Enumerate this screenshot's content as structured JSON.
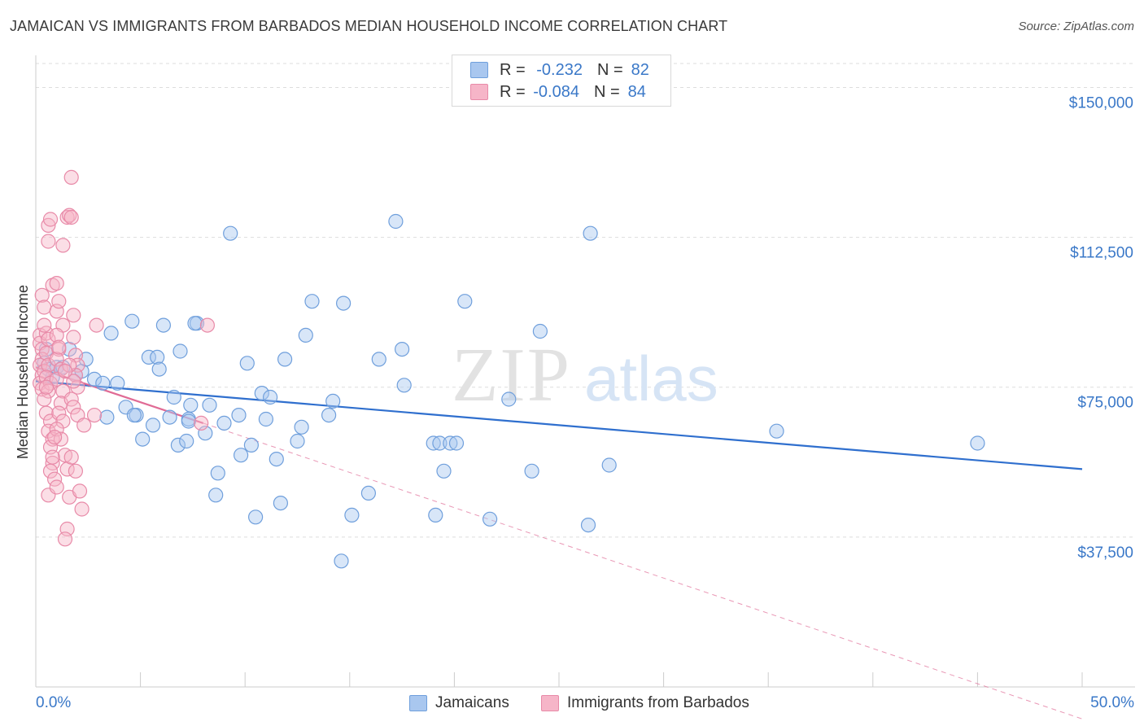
{
  "header": {
    "title": "JAMAICAN VS IMMIGRANTS FROM BARBADOS MEDIAN HOUSEHOLD INCOME CORRELATION CHART",
    "source": "Source: ZipAtlas.com"
  },
  "legend": {
    "rows": [
      {
        "r_label": "R =",
        "r_value": "-0.232",
        "n_label": "N =",
        "n_value": "82",
        "color": "#a9c7ef"
      },
      {
        "r_label": "R =",
        "r_value": "-0.084",
        "n_label": "N =",
        "n_value": "84",
        "color": "#f6b5c8"
      }
    ]
  },
  "bottom_legend": {
    "series1": "Jamaicans",
    "series2": "Immigrants from Barbados"
  },
  "watermark": {
    "zip": "ZIP",
    "atlas": "atlas"
  },
  "colors": {
    "blue_fill": "#a9c7ef",
    "blue_stroke": "#6f9fdc",
    "blue_line": "#2f6fce",
    "pink_fill": "#f6b5c8",
    "pink_stroke": "#e88aa8",
    "pink_line": "#e06b95",
    "axis_text": "#3a78c8",
    "grid": "#dddddd"
  },
  "chart_data": {
    "type": "scatter",
    "title": "JAMAICAN VS IMMIGRANTS FROM BARBADOS MEDIAN HOUSEHOLD INCOME CORRELATION CHART",
    "xlabel": "",
    "ylabel": "Median Household Income",
    "xlim": [
      0,
      50
    ],
    "ylim": [
      0,
      156000
    ],
    "x_tick_labels": [
      "0.0%",
      "50.0%"
    ],
    "y_ticks": [
      37500,
      75000,
      112500,
      150000
    ],
    "y_tick_labels": [
      "$37,500",
      "$75,000",
      "$112,500",
      "$150,000"
    ],
    "series": [
      {
        "name": "Jamaicans",
        "R": -0.232,
        "N": 82,
        "trend": {
          "x": [
            0,
            50
          ],
          "y": [
            76500,
            54500
          ],
          "style": "solid"
        },
        "points": [
          [
            0.4,
            81000
          ],
          [
            0.5,
            84500
          ],
          [
            0.6,
            79500
          ],
          [
            0.8,
            77500
          ],
          [
            1.0,
            80000
          ],
          [
            1.3,
            80000
          ],
          [
            1.6,
            84500
          ],
          [
            1.9,
            78000
          ],
          [
            2.2,
            79000
          ],
          [
            2.4,
            82000
          ],
          [
            2.8,
            77000
          ],
          [
            3.2,
            76000
          ],
          [
            3.6,
            88500
          ],
          [
            3.9,
            76000
          ],
          [
            4.3,
            70000
          ],
          [
            4.6,
            91500
          ],
          [
            4.8,
            68000
          ],
          [
            4.7,
            68000
          ],
          [
            5.1,
            62000
          ],
          [
            5.4,
            82500
          ],
          [
            5.6,
            65500
          ],
          [
            5.8,
            82500
          ],
          [
            5.9,
            79500
          ],
          [
            6.1,
            90500
          ],
          [
            6.4,
            67500
          ],
          [
            6.6,
            72500
          ],
          [
            6.8,
            60500
          ],
          [
            6.9,
            84000
          ],
          [
            7.2,
            61500
          ],
          [
            7.3,
            67000
          ],
          [
            7.4,
            70500
          ],
          [
            7.7,
            91000
          ],
          [
            7.6,
            91000
          ],
          [
            8.1,
            63500
          ],
          [
            8.3,
            70500
          ],
          [
            8.7,
            53500
          ],
          [
            8.6,
            48000
          ],
          [
            9.0,
            66000
          ],
          [
            9.3,
            113500
          ],
          [
            9.7,
            68000
          ],
          [
            9.8,
            58000
          ],
          [
            10.1,
            81000
          ],
          [
            10.3,
            60500
          ],
          [
            10.5,
            42500
          ],
          [
            10.8,
            73500
          ],
          [
            11.0,
            67000
          ],
          [
            11.2,
            72500
          ],
          [
            11.5,
            57000
          ],
          [
            11.7,
            46000
          ],
          [
            11.9,
            82000
          ],
          [
            12.5,
            61500
          ],
          [
            12.7,
            65000
          ],
          [
            12.9,
            88000
          ],
          [
            13.2,
            96500
          ],
          [
            14.2,
            71500
          ],
          [
            14.0,
            68000
          ],
          [
            14.6,
            31500
          ],
          [
            14.7,
            96000
          ],
          [
            15.1,
            43000
          ],
          [
            15.9,
            48500
          ],
          [
            16.4,
            82000
          ],
          [
            17.2,
            116500
          ],
          [
            17.5,
            84500
          ],
          [
            17.6,
            75500
          ],
          [
            19.0,
            61000
          ],
          [
            19.1,
            43000
          ],
          [
            19.3,
            61000
          ],
          [
            19.5,
            54000
          ],
          [
            19.8,
            61000
          ],
          [
            20.1,
            61000
          ],
          [
            20.5,
            96500
          ],
          [
            21.7,
            42000
          ],
          [
            22.6,
            72000
          ],
          [
            23.7,
            54000
          ],
          [
            24.1,
            89000
          ],
          [
            26.5,
            113500
          ],
          [
            26.4,
            40500
          ],
          [
            27.4,
            55500
          ],
          [
            35.4,
            64000
          ],
          [
            45.0,
            61000
          ],
          [
            7.3,
            66500
          ],
          [
            3.4,
            67500
          ]
        ]
      },
      {
        "name": "Immigrants from Barbados",
        "R": -0.084,
        "N": 84,
        "trend": {
          "x": [
            0,
            8
          ],
          "y": [
            80000,
            66000
          ],
          "style": "solid"
        },
        "trend_extended": {
          "x": [
            8,
            50
          ],
          "y": [
            66000,
            -8000
          ],
          "style": "dashed"
        },
        "points": [
          [
            0.2,
            88000
          ],
          [
            0.2,
            86000
          ],
          [
            0.3,
            84500
          ],
          [
            0.3,
            82000
          ],
          [
            0.2,
            80500
          ],
          [
            0.3,
            78000
          ],
          [
            0.2,
            76000
          ],
          [
            0.3,
            74500
          ],
          [
            0.4,
            79000
          ],
          [
            0.3,
            98000
          ],
          [
            0.4,
            95000
          ],
          [
            0.5,
            88500
          ],
          [
            0.6,
            87000
          ],
          [
            0.5,
            83500
          ],
          [
            0.6,
            80500
          ],
          [
            0.5,
            77500
          ],
          [
            0.7,
            76000
          ],
          [
            0.6,
            74000
          ],
          [
            0.4,
            72000
          ],
          [
            0.5,
            68500
          ],
          [
            0.7,
            66500
          ],
          [
            0.6,
            64000
          ],
          [
            0.8,
            62000
          ],
          [
            0.7,
            60000
          ],
          [
            0.8,
            56000
          ],
          [
            0.7,
            54000
          ],
          [
            0.9,
            52000
          ],
          [
            0.6,
            48000
          ],
          [
            1.0,
            50000
          ],
          [
            0.6,
            111500
          ],
          [
            0.6,
            115500
          ],
          [
            0.7,
            117000
          ],
          [
            0.8,
            100500
          ],
          [
            1.0,
            101000
          ],
          [
            1.0,
            94000
          ],
          [
            1.1,
            96500
          ],
          [
            1.3,
            90500
          ],
          [
            1.0,
            88000
          ],
          [
            1.1,
            84500
          ],
          [
            1.0,
            82000
          ],
          [
            1.2,
            79500
          ],
          [
            1.0,
            77000
          ],
          [
            1.3,
            74000
          ],
          [
            1.2,
            71000
          ],
          [
            1.1,
            68500
          ],
          [
            1.3,
            66500
          ],
          [
            1.0,
            64500
          ],
          [
            1.2,
            62000
          ],
          [
            1.4,
            58000
          ],
          [
            1.5,
            54500
          ],
          [
            1.6,
            47500
          ],
          [
            1.5,
            39500
          ],
          [
            1.4,
            37000
          ],
          [
            1.3,
            110500
          ],
          [
            1.5,
            117500
          ],
          [
            1.6,
            118000
          ],
          [
            1.7,
            127500
          ],
          [
            1.7,
            117500
          ],
          [
            1.8,
            93000
          ],
          [
            1.8,
            87500
          ],
          [
            1.9,
            83000
          ],
          [
            2.0,
            80500
          ],
          [
            1.9,
            78000
          ],
          [
            2.0,
            75000
          ],
          [
            1.7,
            72000
          ],
          [
            1.8,
            70000
          ],
          [
            2.0,
            68000
          ],
          [
            1.7,
            57500
          ],
          [
            1.9,
            54000
          ],
          [
            2.1,
            49000
          ],
          [
            2.2,
            44500
          ],
          [
            2.3,
            65500
          ],
          [
            2.8,
            68000
          ],
          [
            2.9,
            90500
          ],
          [
            1.6,
            80500
          ],
          [
            1.8,
            76500
          ],
          [
            0.9,
            62500
          ],
          [
            0.8,
            57500
          ],
          [
            0.4,
            90500
          ],
          [
            0.5,
            75000
          ],
          [
            1.1,
            85000
          ],
          [
            8.2,
            90500
          ],
          [
            7.9,
            66000
          ],
          [
            1.4,
            79000
          ]
        ]
      }
    ]
  }
}
